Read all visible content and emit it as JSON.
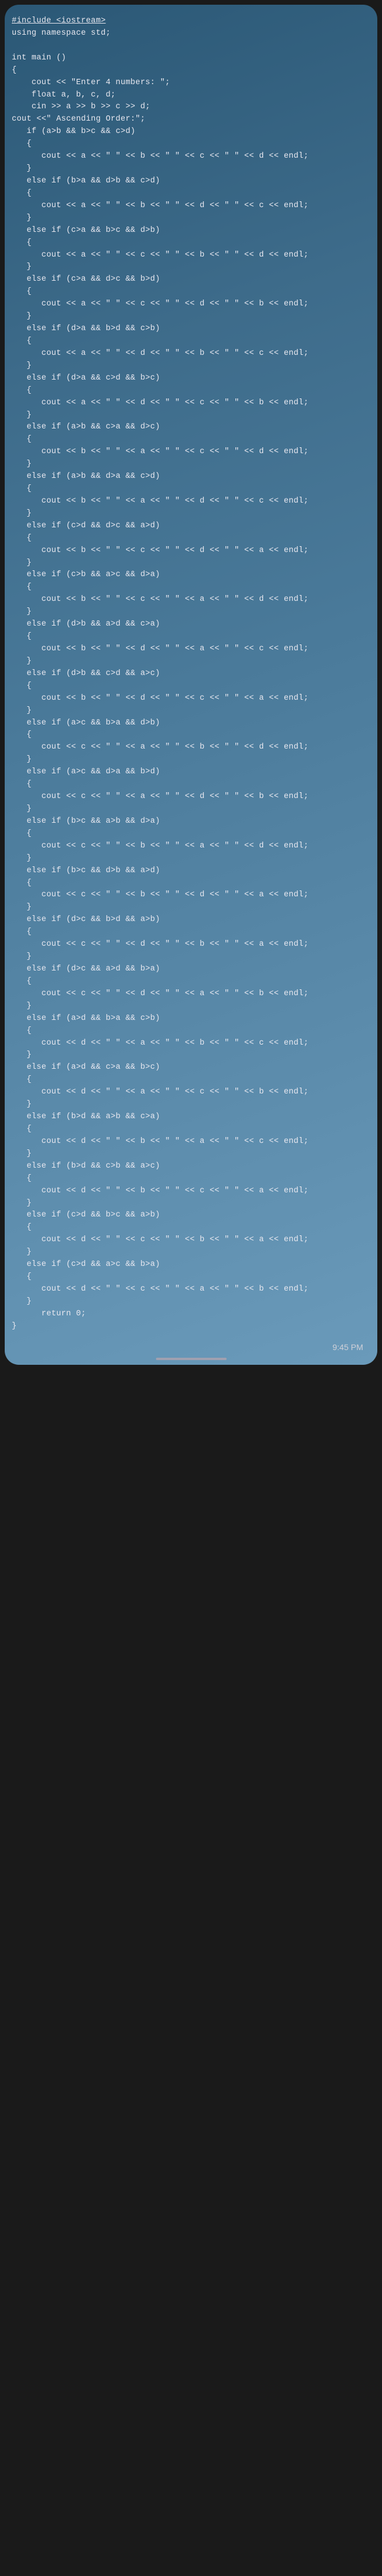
{
  "code": {
    "include": "#include <iostream>",
    "using": "using namespace std;",
    "blank1": "",
    "main_sig": "int main ()",
    "brace_open": "{",
    "cout_prompt": "    cout << \"Enter 4 numbers: \";",
    "decl": "    float a, b, c, d;",
    "cin": "    cin >> a >> b >> c >> d;",
    "cout_asc": "cout <<\" Ascending Order:\";",
    "if1": "   if (a>b && b>c && c>d)",
    "b1o": "   {",
    "p1": "      cout << a << \" \" << b << \" \" << c << \" \" << d << endl;",
    "b1c": "   }",
    "if2": "   else if (b>a && d>b && c>d)",
    "b2o": "   {",
    "p2": "      cout << a << \" \" << b << \" \" << d << \" \" << c << endl;",
    "b2c": "   }",
    "if3": "   else if (c>a && b>c && d>b)",
    "b3o": "   {",
    "p3": "      cout << a << \" \" << c << \" \" << b << \" \" << d << endl;",
    "b3c": "   }",
    "if4": "   else if (c>a && d>c && b>d)",
    "b4o": "   {",
    "p4": "      cout << a << \" \" << c << \" \" << d << \" \" << b << endl;",
    "b4c": "   }",
    "if5": "   else if (d>a && b>d && c>b)",
    "b5o": "   {",
    "p5": "      cout << a << \" \" << d << \" \" << b << \" \" << c << endl;",
    "b5c": "   }",
    "if6": "   else if (d>a && c>d && b>c)",
    "b6o": "   {",
    "p6": "      cout << a << \" \" << d << \" \" << c << \" \" << b << endl;",
    "b6c": "   }",
    "if7": "   else if (a>b && c>a && d>c)",
    "b7o": "   {",
    "p7": "      cout << b << \" \" << a << \" \" << c << \" \" << d << endl;",
    "b7c": "   }",
    "if8": "   else if (a>b && d>a && c>d)",
    "b8o": "   {",
    "p8": "      cout << b << \" \" << a << \" \" << d << \" \" << c << endl;",
    "b8c": "   }",
    "if9": "   else if (c>d && d>c && a>d)",
    "b9o": "   {",
    "p9": "      cout << b << \" \" << c << \" \" << d << \" \" << a << endl;",
    "b9c": "   }",
    "if10": "   else if (c>b && a>c && d>a)",
    "b10o": "   {",
    "p10": "      cout << b << \" \" << c << \" \" << a << \" \" << d << endl;",
    "b10c": "   }",
    "if11": "   else if (d>b && a>d && c>a)",
    "b11o": "   {",
    "p11": "      cout << b << \" \" << d << \" \" << a << \" \" << c << endl;",
    "b11c": "   }",
    "if12": "   else if (d>b && c>d && a>c)",
    "b12o": "   {",
    "p12": "      cout << b << \" \" << d << \" \" << c << \" \" << a << endl;",
    "b12c": "   }",
    "if13": "   else if (a>c && b>a && d>b)",
    "b13o": "   {",
    "p13": "      cout << c << \" \" << a << \" \" << b << \" \" << d << endl;",
    "b13c": "   }",
    "if14": "   else if (a>c && d>a && b>d)",
    "b14o": "   {",
    "p14": "      cout << c << \" \" << a << \" \" << d << \" \" << b << endl;",
    "b14c": "   }",
    "if15": "   else if (b>c && a>b && d>a)",
    "b15o": "   {",
    "p15": "      cout << c << \" \" << b << \" \" << a << \" \" << d << endl;",
    "b15c": "   }",
    "if16": "   else if (b>c && d>b && a>d)",
    "b16o": "   {",
    "p16": "      cout << c << \" \" << b << \" \" << d << \" \" << a << endl;",
    "b16c": "   }",
    "if17": "   else if (d>c && b>d && a>b)",
    "b17o": "   {",
    "p17": "      cout << c << \" \" << d << \" \" << b << \" \" << a << endl;",
    "b17c": "   }",
    "if18": "   else if (d>c && a>d && b>a)",
    "b18o": "   {",
    "p18": "      cout << c << \" \" << d << \" \" << a << \" \" << b << endl;",
    "b18c": "   }",
    "if19": "   else if (a>d && b>a && c>b)",
    "b19o": "   {",
    "p19": "      cout << d << \" \" << a << \" \" << b << \" \" << c << endl;",
    "b19c": "   }",
    "if20": "   else if (a>d && c>a && b>c)",
    "b20o": "   {",
    "p20": "      cout << d << \" \" << a << \" \" << c << \" \" << b << endl;",
    "b20c": "   }",
    "if21": "   else if (b>d && a>b && c>a)",
    "b21o": "   {",
    "p21": "      cout << d << \" \" << b << \" \" << a << \" \" << c << endl;",
    "b21c": "   }",
    "if22": "   else if (b>d && c>b && a>c)",
    "b22o": "   {",
    "p22": "      cout << d << \" \" << b << \" \" << c << \" \" << a << endl;",
    "b22c": "   }",
    "if23": "   else if (c>d && b>c && a>b)",
    "b23o": "   {",
    "p23": "      cout << d << \" \" << c << \" \" << b << \" \" << a << endl;",
    "b23c": "   }",
    "if24": "   else if (c>d && a>c && b>a)",
    "b24o": "   {",
    "p24": "      cout << d << \" \" << c << \" \" << a << \" \" << b << endl;",
    "b24c": "   }",
    "ret": "      return 0;",
    "brace_close": "}"
  },
  "status": {
    "time": "9:45 PM"
  },
  "style": {
    "bg_gradient": [
      "#2b5876",
      "#3d6b8a",
      "#4a7a9a",
      "#5a8aaa",
      "#6a9aba"
    ],
    "text_color": "#e8e8f0",
    "font_size": 13.5,
    "line_height": 1.55,
    "border_radius": 24
  }
}
